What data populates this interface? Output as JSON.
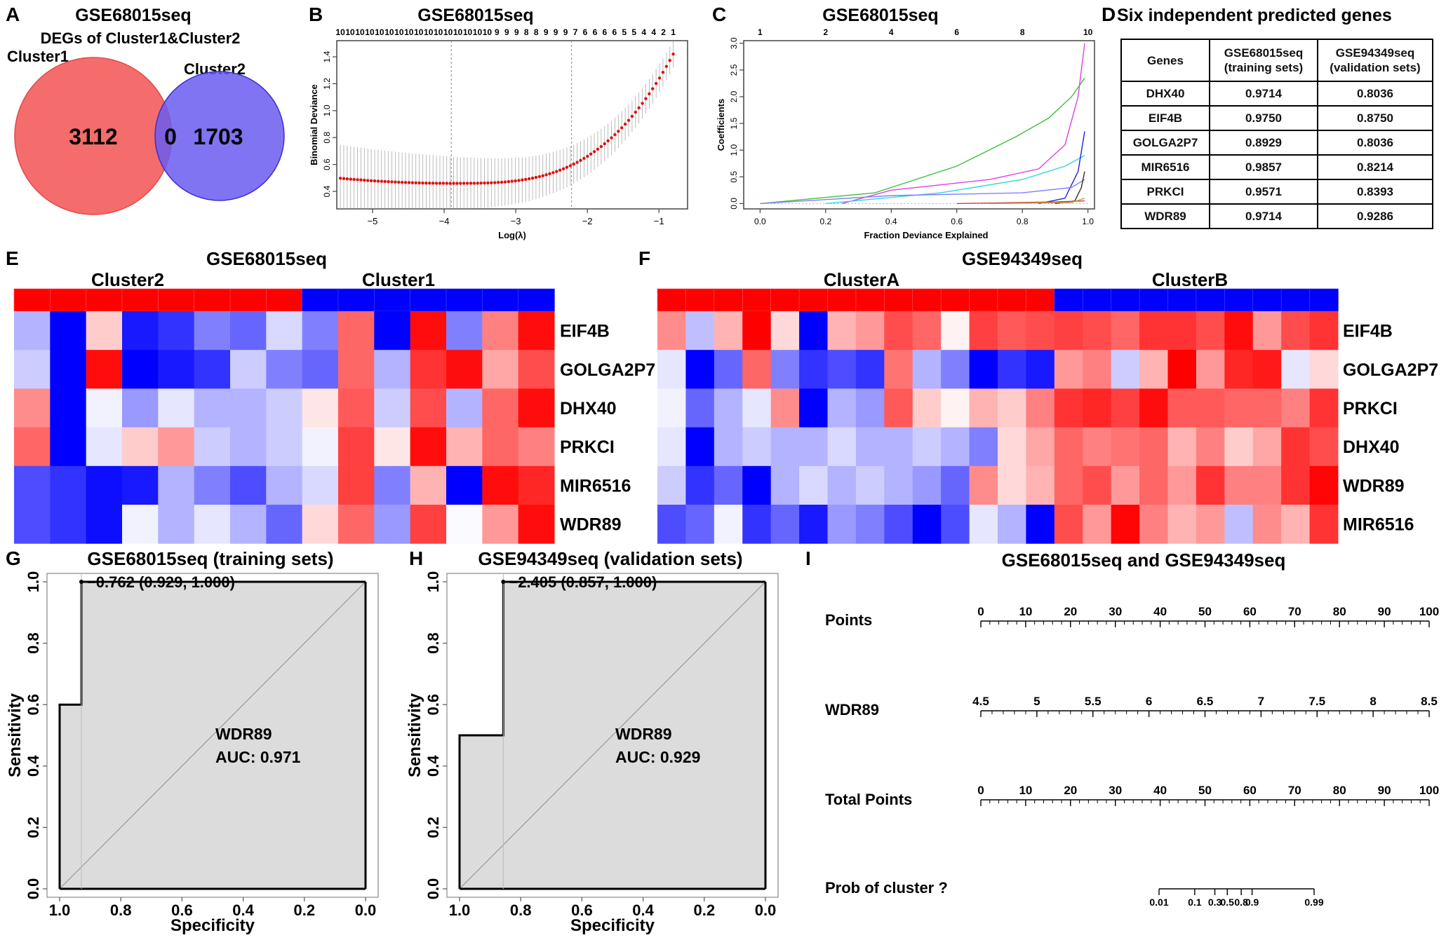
{
  "colors": {
    "venn_red": "#f45c5c",
    "venn_blue": "#6a5cf0",
    "heat_red": "#ff0000",
    "heat_blue": "#0000ff",
    "cv_point": "#e01010",
    "roc_fill": "#dcdcdc"
  },
  "panelA": {
    "letter": "A",
    "title": "GSE68015seq",
    "subtitle": "DEGs of Cluster1&Cluster2",
    "label_left": "Cluster1",
    "label_right": "Cluster2",
    "n_left": "3112",
    "n_overlap": "0",
    "n_right": "1703"
  },
  "panelB": {
    "letter": "B",
    "title": "GSE68015seq",
    "xlabel": "Log(λ)",
    "ylabel": "Binomial Deviance",
    "top_numbers": [
      "10",
      "10",
      "10",
      "10",
      "10",
      "10",
      "10",
      "10",
      "10",
      "10",
      "10",
      "10",
      "10",
      "10",
      "10",
      "10",
      "9",
      "9",
      "9",
      "8",
      "8",
      "9",
      "9",
      "9",
      "7",
      "6",
      "6",
      "6",
      "6",
      "5",
      "5",
      "4",
      "4",
      "2",
      "1"
    ],
    "x_ticks": [
      "−5",
      "−4",
      "−3",
      "−2",
      "−1"
    ],
    "y_ticks": [
      "0.4",
      "0.6",
      "0.8",
      "1.0",
      "1.2",
      "1.4"
    ]
  },
  "panelC": {
    "letter": "C",
    "title": "GSE68015seq",
    "xlabel": "Fraction Deviance Explained",
    "ylabel": "Coefficients",
    "top_ticks": [
      "1",
      "2",
      "4",
      "6",
      "8",
      "10"
    ],
    "x_ticks": [
      "0.0",
      "0.2",
      "0.4",
      "0.6",
      "0.8",
      "1.0"
    ],
    "y_ticks": [
      "0.0",
      "0.5",
      "1.0",
      "1.5",
      "2.0",
      "2.5",
      "3.0"
    ]
  },
  "panelD": {
    "letter": "D",
    "title": "Six independent predicted genes",
    "headers": [
      "Genes",
      "GSE68015seq\n(training sets)",
      "GSE94349seq\n(validation sets)"
    ],
    "rows": [
      [
        "DHX40",
        "0.9714",
        "0.8036"
      ],
      [
        "EIF4B",
        "0.9750",
        "0.8750"
      ],
      [
        "GOLGA2P7",
        "0.8929",
        "0.8036"
      ],
      [
        "MIR6516",
        "0.9857",
        "0.8214"
      ],
      [
        "PRKCI",
        "0.9571",
        "0.8393"
      ],
      [
        "WDR89",
        "0.9714",
        "0.9286"
      ]
    ]
  },
  "panelE": {
    "letter": "E",
    "title": "GSE68015seq",
    "group_left": "Cluster2",
    "group_right": "Cluster1",
    "genes": [
      "EIF4B",
      "GOLGA2P7",
      "DHX40",
      "PRKCI",
      "MIR6516",
      "WDR89"
    ],
    "annotation": [
      -1,
      -1,
      -1,
      -1,
      -1,
      -1,
      -1,
      -1,
      1,
      1,
      1,
      1,
      1,
      1,
      1
    ],
    "matrix": [
      [
        -0.3,
        -1,
        0.2,
        -0.9,
        -0.8,
        -0.5,
        -0.6,
        -0.15,
        -0.5,
        0.6,
        -1,
        0.95,
        -0.5,
        0.5,
        0.95
      ],
      [
        -0.2,
        -1,
        0.95,
        -1,
        -0.9,
        -0.8,
        -0.2,
        -0.5,
        -0.6,
        0.6,
        -0.3,
        0.8,
        0.95,
        0.35,
        0.7
      ],
      [
        0.45,
        -1,
        -0.05,
        -0.4,
        -0.1,
        -0.3,
        -0.3,
        -0.2,
        0.1,
        0.65,
        -0.2,
        0.7,
        -0.3,
        0.6,
        0.95
      ],
      [
        0.6,
        -1,
        -0.1,
        0.2,
        0.4,
        -0.2,
        -0.3,
        -0.2,
        -0.05,
        0.75,
        0.1,
        0.95,
        0.3,
        0.6,
        0.5
      ],
      [
        -0.7,
        -0.8,
        -0.95,
        -0.9,
        -0.3,
        -0.5,
        -0.7,
        -0.3,
        -0.15,
        0.75,
        -0.5,
        0.3,
        -1,
        0.95,
        0.85
      ],
      [
        -0.7,
        -0.8,
        -0.95,
        -0.05,
        -0.3,
        -0.1,
        -0.3,
        -0.6,
        0.15,
        0.6,
        -0.4,
        0.75,
        -0.02,
        0.4,
        0.95
      ]
    ]
  },
  "panelF": {
    "letter": "F",
    "title": "GSE94349seq",
    "group_left": "ClusterA",
    "group_right": "ClusterB",
    "genes": [
      "EIF4B",
      "GOLGA2P7",
      "PRKCI",
      "DHX40",
      "WDR89",
      "MIR6516"
    ],
    "annotation": [
      -1,
      -1,
      -1,
      -1,
      -1,
      -1,
      -1,
      -1,
      -1,
      -1,
      -1,
      -1,
      -1,
      -1,
      1,
      1,
      1,
      1,
      1,
      1,
      1,
      1,
      1,
      1
    ],
    "matrix": [
      [
        0.45,
        -0.25,
        0.3,
        1,
        0.15,
        -1,
        0.3,
        0.4,
        0.7,
        0.6,
        0.05,
        0.75,
        0.65,
        0.7,
        0.75,
        0.7,
        0.6,
        0.8,
        0.8,
        0.7,
        0.95,
        0.4,
        0.7,
        0.8
      ],
      [
        -0.1,
        -1,
        -0.6,
        0.6,
        -0.5,
        -0.8,
        -0.7,
        -0.8,
        0.55,
        -0.3,
        -0.5,
        -1,
        -0.8,
        -0.9,
        0.4,
        0.5,
        -0.2,
        0.3,
        1,
        0.4,
        0.85,
        0.9,
        -0.1,
        0.15
      ],
      [
        -0.05,
        -0.6,
        -0.3,
        -0.1,
        0.45,
        -1,
        -0.3,
        -0.4,
        0.65,
        0.2,
        0.05,
        0.3,
        0.2,
        0.5,
        0.8,
        0.85,
        0.75,
        0.95,
        0.65,
        0.65,
        0.6,
        0.6,
        0.5,
        0.8
      ],
      [
        -0.1,
        -1,
        -0.3,
        -0.2,
        -0.3,
        -0.3,
        -0.15,
        -0.3,
        -0.3,
        -0.2,
        -0.3,
        -0.5,
        0.15,
        0.35,
        0.6,
        0.5,
        0.55,
        0.6,
        0.3,
        0.5,
        0.2,
        0.35,
        0.8,
        0.7
      ],
      [
        -0.2,
        -0.8,
        -0.6,
        -1,
        -0.3,
        -0.15,
        -0.3,
        -0.2,
        -0.3,
        -0.4,
        -0.6,
        0.45,
        0.15,
        0.3,
        0.6,
        0.7,
        0.4,
        0.6,
        0.4,
        0.8,
        0.5,
        0.5,
        0.8,
        0.98
      ],
      [
        -0.7,
        -0.6,
        -0.05,
        -0.8,
        -0.6,
        -0.9,
        -0.4,
        -0.5,
        -0.7,
        -1,
        -0.7,
        -0.1,
        -0.3,
        -1,
        0.7,
        0.4,
        0.98,
        0.5,
        0.3,
        0.4,
        -0.25,
        0.45,
        0.3,
        0.8
      ]
    ]
  },
  "panelG": {
    "letter": "G",
    "title": "GSE68015seq (training sets)",
    "annotation": "−0.762 (0.929, 1.000)",
    "gene": "WDR89",
    "auc": "AUC: 0.971",
    "xlabel": "Specificity",
    "ylabel": "Sensitivity",
    "x_ticks": [
      "1.0",
      "0.8",
      "0.6",
      "0.4",
      "0.2",
      "0.0"
    ],
    "y_ticks": [
      "0.0",
      "0.2",
      "0.4",
      "0.6",
      "0.8",
      "1.0"
    ],
    "roc_spec": [
      1.0,
      1.0,
      0.929,
      0.929,
      0.0
    ],
    "roc_sens": [
      0.0,
      0.6,
      0.6,
      1.0,
      1.0
    ]
  },
  "panelH": {
    "letter": "H",
    "title": "GSE94349seq (validation sets)",
    "annotation": "−2.405 (0.857, 1.000)",
    "gene": "WDR89",
    "auc": "AUC: 0.929",
    "xlabel": "Specificity",
    "ylabel": "Sensitivity",
    "x_ticks": [
      "1.0",
      "0.8",
      "0.6",
      "0.4",
      "0.2",
      "0.0"
    ],
    "y_ticks": [
      "0.0",
      "0.2",
      "0.4",
      "0.6",
      "0.8",
      "1.0"
    ],
    "roc_spec": [
      1.0,
      1.0,
      0.857,
      0.857,
      0.0
    ],
    "roc_sens": [
      0.0,
      0.5,
      0.5,
      1.0,
      1.0
    ]
  },
  "panelI": {
    "letter": "I",
    "title": "GSE68015seq and GSE94349seq",
    "row_points": "Points",
    "row_gene": "WDR89",
    "row_total": "Total Points",
    "row_prob": "Prob of cluster ?",
    "points_ticks": [
      "0",
      "10",
      "20",
      "30",
      "40",
      "50",
      "60",
      "70",
      "80",
      "90",
      "100"
    ],
    "gene_ticks": [
      "4.5",
      "5",
      "5.5",
      "6",
      "6.5",
      "7",
      "7.5",
      "8",
      "8.5"
    ],
    "total_ticks": [
      "0",
      "10",
      "20",
      "30",
      "40",
      "50",
      "60",
      "70",
      "80",
      "90",
      "100"
    ],
    "prob_ticks": [
      "0.01",
      "0.1",
      "0.3",
      "0.5",
      "0.8",
      "0.9",
      "0.99"
    ]
  }
}
